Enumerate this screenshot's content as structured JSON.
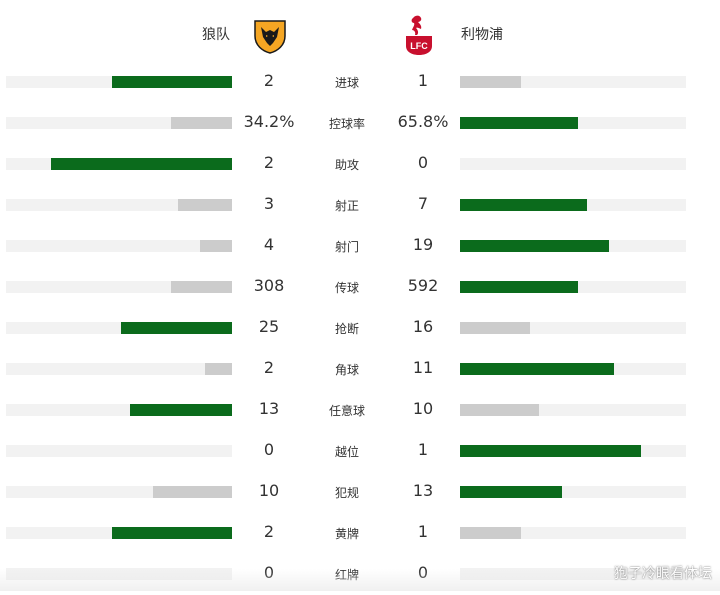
{
  "home": {
    "name": "狼队"
  },
  "away": {
    "name": "利物浦"
  },
  "crests": {
    "home": "wolves-crest",
    "away": "liverpool-crest"
  },
  "colors": {
    "winner": "#0b6b1c",
    "loser": "#cccccc",
    "track": "#f2f2f2"
  },
  "stats": [
    {
      "label": "进球",
      "home": "2",
      "away": "1",
      "home_share": 0.53,
      "away_share": 0.27,
      "winner": "home"
    },
    {
      "label": "控球率",
      "home": "34.2%",
      "away": "65.8%",
      "home_share": 0.27,
      "away_share": 0.52,
      "winner": "away"
    },
    {
      "label": "助攻",
      "home": "2",
      "away": "0",
      "home_share": 0.8,
      "away_share": 0.0,
      "winner": "home"
    },
    {
      "label": "射正",
      "home": "3",
      "away": "7",
      "home_share": 0.24,
      "away_share": 0.56,
      "winner": "away"
    },
    {
      "label": "射门",
      "home": "4",
      "away": "19",
      "home_share": 0.14,
      "away_share": 0.66,
      "winner": "away"
    },
    {
      "label": "传球",
      "home": "308",
      "away": "592",
      "home_share": 0.27,
      "away_share": 0.52,
      "winner": "away"
    },
    {
      "label": "抢断",
      "home": "25",
      "away": "16",
      "home_share": 0.49,
      "away_share": 0.31,
      "winner": "home"
    },
    {
      "label": "角球",
      "home": "2",
      "away": "11",
      "home_share": 0.12,
      "away_share": 0.68,
      "winner": "away"
    },
    {
      "label": "任意球",
      "home": "13",
      "away": "10",
      "home_share": 0.45,
      "away_share": 0.35,
      "winner": "home"
    },
    {
      "label": "越位",
      "home": "0",
      "away": "1",
      "home_share": 0.0,
      "away_share": 0.8,
      "winner": "away"
    },
    {
      "label": "犯规",
      "home": "10",
      "away": "13",
      "home_share": 0.35,
      "away_share": 0.45,
      "winner": "away"
    },
    {
      "label": "黄牌",
      "home": "2",
      "away": "1",
      "home_share": 0.53,
      "away_share": 0.27,
      "winner": "home"
    },
    {
      "label": "红牌",
      "home": "0",
      "away": "0",
      "home_share": 0.0,
      "away_share": 0.0,
      "winner": "none"
    }
  ],
  "watermark": "狍子冷眼看体坛"
}
